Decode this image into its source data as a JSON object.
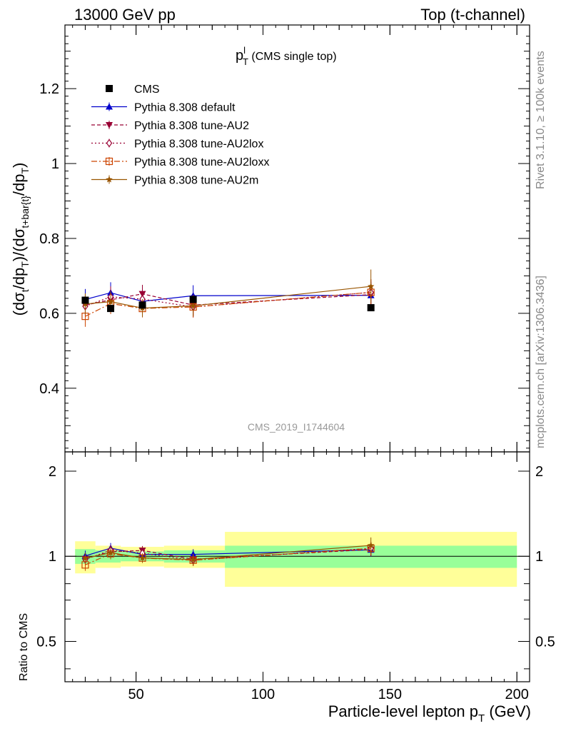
{
  "header": {
    "left": "13000 GeV pp",
    "right": "Top (t-channel)"
  },
  "title": {
    "main": "p",
    "sup": "l",
    "sub": "T",
    "suffix": " (CMS single top)"
  },
  "side_labels": {
    "rivet": "Rivet 3.1.10, ≥ 100k events",
    "mcplots": "mcplots.cern.ch [arXiv:1306.3436]"
  },
  "watermark": "CMS_2019_I1744604",
  "axes": {
    "ylabel_main": "(dσt/dpT)/(dσt+bar{t}/dpT)",
    "ylabel_main_parts": [
      "(dσ",
      "t",
      "/dp",
      "T",
      ")/(dσ",
      "t+bar{t}",
      "/dp",
      "T",
      ")"
    ],
    "ylabel_ratio": "Ratio to CMS",
    "xlabel_text": "Particle-level lepton p",
    "xlabel_sub": "T",
    "xlabel_unit": " (GeV)"
  },
  "chart_data": {
    "type": "line",
    "x_range": [
      22,
      205
    ],
    "y_range_main": [
      0.23,
      1.37
    ],
    "y_range_ratio": [
      0.36,
      2.34
    ],
    "ratio_log_scale": true,
    "x_ticks": [
      50,
      100,
      150,
      200
    ],
    "y_ticks_main": [
      0.4,
      0.6,
      0.8,
      1,
      1.2
    ],
    "y_tick_labels_main": [
      "0.4",
      "0.6",
      "0.8",
      "1",
      "1.2"
    ],
    "y_ticks_ratio": [
      0.5,
      1,
      2
    ],
    "y_tick_labels_ratio": [
      "0.5",
      "1",
      "2"
    ],
    "data": {
      "name": "CMS",
      "bins": [
        [
          26,
          34
        ],
        [
          34,
          44
        ],
        [
          44,
          61
        ],
        [
          61,
          85
        ],
        [
          85,
          200
        ]
      ],
      "x": [
        30,
        40,
        52.5,
        72.5,
        142.5
      ],
      "y": [
        0.635,
        0.613,
        0.622,
        0.637,
        0.615
      ],
      "stat_band": [
        0.06,
        0.05,
        0.04,
        0.05,
        0.09
      ],
      "total_band": [
        0.13,
        0.09,
        0.08,
        0.09,
        0.22
      ]
    },
    "series": [
      {
        "name": "Pythia 8.308 default",
        "color": "#0000cc",
        "marker": "triangle-up",
        "dash": "",
        "x": [
          30,
          40,
          52.5,
          72.5,
          142.5
        ],
        "y": [
          0.637,
          0.655,
          0.632,
          0.647,
          0.648
        ],
        "err": [
          0.028,
          0.028,
          0.024,
          0.028,
          0.035
        ]
      },
      {
        "name": "Pythia 8.308 tune-AU2",
        "color": "#990033",
        "marker": "triangle-down",
        "dash": "5,3",
        "x": [
          30,
          40,
          52.5,
          72.5,
          142.5
        ],
        "y": [
          0.622,
          0.636,
          0.652,
          0.622,
          0.65
        ],
        "err": [
          0.028,
          0.028,
          0.024,
          0.028,
          0.035
        ]
      },
      {
        "name": "Pythia 8.308 tune-AU2lox",
        "color": "#990033",
        "marker": "diamond",
        "dash": "2,3",
        "x": [
          30,
          40,
          52.5,
          72.5,
          142.5
        ],
        "y": [
          0.619,
          0.644,
          0.638,
          0.617,
          0.656
        ],
        "err": [
          0.028,
          0.028,
          0.024,
          0.028,
          0.035
        ]
      },
      {
        "name": "Pythia 8.308 tune-AU2loxx",
        "color": "#cc4400",
        "marker": "square-open",
        "dash": "8,3,2,3",
        "x": [
          30,
          40,
          52.5,
          72.5,
          142.5
        ],
        "y": [
          0.592,
          0.626,
          0.613,
          0.617,
          0.656
        ],
        "err": [
          0.028,
          0.028,
          0.024,
          0.028,
          0.035
        ]
      },
      {
        "name": "Pythia 8.308 tune-AU2m",
        "color": "#995500",
        "marker": "star",
        "dash": "",
        "x": [
          30,
          40,
          52.5,
          72.5,
          142.5
        ],
        "y": [
          0.625,
          0.631,
          0.614,
          0.62,
          0.672
        ],
        "err": [
          0.028,
          0.028,
          0.024,
          0.028,
          0.045
        ]
      }
    ],
    "legend_position": "top-left",
    "colors": {
      "stat_band": "#99ff99",
      "total_band": "#ffff99"
    }
  }
}
